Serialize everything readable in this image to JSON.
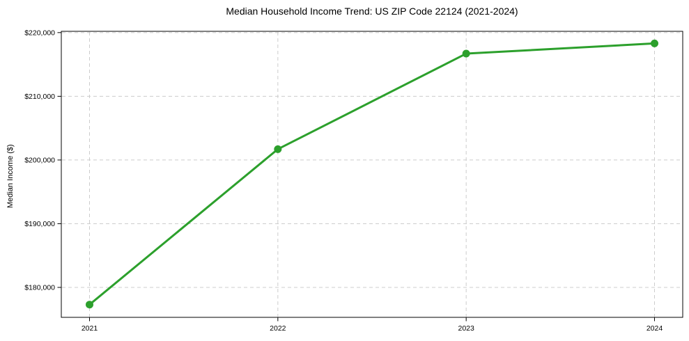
{
  "chart_data": {
    "type": "line",
    "title": "Median Household Income Trend: US ZIP Code 22124 (2021-2024)",
    "xlabel": "",
    "ylabel": "Median Income ($)",
    "x": [
      2021,
      2022,
      2023,
      2024
    ],
    "series": [
      {
        "name": "Median Household Income",
        "values": [
          177300,
          201700,
          216700,
          218300
        ]
      }
    ],
    "ylim": [
      175300,
      220200
    ],
    "yticks": [
      180000,
      190000,
      200000,
      210000,
      220000
    ],
    "ytick_labels": [
      "$180,000",
      "$190,000",
      "$200,000",
      "$210,000",
      "$220,000"
    ],
    "xtick_labels": [
      "2021",
      "2022",
      "2023",
      "2024"
    ],
    "grid": true,
    "grid_style": "dashed",
    "grid_color": "#cccccc",
    "line_color": "#2ca02c",
    "marker": "circle",
    "marker_color": "#2ca02c",
    "legend_position": "none"
  }
}
